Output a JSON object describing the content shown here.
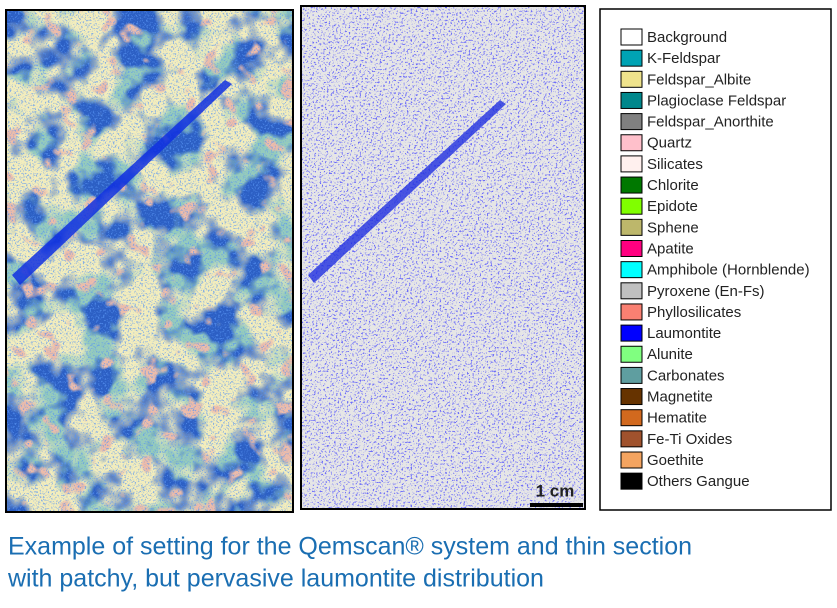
{
  "figure": {
    "scale_bar": "1 cm"
  },
  "legend": {
    "items": [
      {
        "label": "Background",
        "color": "#ffffff"
      },
      {
        "label": "K-Feldspar",
        "color": "#00a3b4"
      },
      {
        "label": "Feldspar_Albite",
        "color": "#efe38c"
      },
      {
        "label": "Plagioclase Feldspar",
        "color": "#00878c"
      },
      {
        "label": "Feldspar_Anorthite",
        "color": "#808080"
      },
      {
        "label": "Quartz",
        "color": "#ffc0cb"
      },
      {
        "label": "Silicates",
        "color": "#fff0ee"
      },
      {
        "label": "Chlorite",
        "color": "#007800"
      },
      {
        "label": "Epidote",
        "color": "#80ff00"
      },
      {
        "label": "Sphene",
        "color": "#bdb76b"
      },
      {
        "label": "Apatite",
        "color": "#ff0080"
      },
      {
        "label": "Amphibole (Hornblende)",
        "color": "#00ffff"
      },
      {
        "label": "Pyroxene (En-Fs)",
        "color": "#c0c0c0"
      },
      {
        "label": "Phyllosilicates",
        "color": "#fa8072"
      },
      {
        "label": "Laumontite",
        "color": "#0000ff"
      },
      {
        "label": "Alunite",
        "color": "#80ff80"
      },
      {
        "label": "Carbonates",
        "color": "#5f9ea0"
      },
      {
        "label": "Magnetite",
        "color": "#663300"
      },
      {
        "label": "Hematite",
        "color": "#d2691e"
      },
      {
        "label": "Fe-Ti Oxides",
        "color": "#a0522d"
      },
      {
        "label": "Goethite",
        "color": "#f4a460"
      },
      {
        "label": "Others Gangue",
        "color": "#000000"
      }
    ]
  },
  "caption": {
    "lines": [
      "Example of setting for the Qemscan® system and thin section",
      "with patchy, but pervasive laumontite distribution"
    ]
  }
}
